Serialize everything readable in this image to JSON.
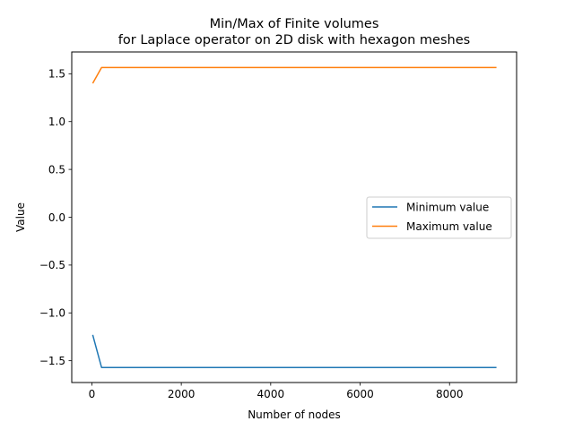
{
  "chart_data": {
    "type": "line",
    "title": "Min/Max of Finite volumes\nfor Laplace operator on 2D disk with hexagon meshes",
    "xlabel": "Number of nodes",
    "ylabel": "Value",
    "xlim": [
      -450,
      9500
    ],
    "ylim": [
      -1.728,
      1.728
    ],
    "xticks": [
      0,
      2000,
      4000,
      6000,
      8000
    ],
    "xtick_labels": [
      "0",
      "2000",
      "4000",
      "6000",
      "8000"
    ],
    "yticks": [
      -1.5,
      -1.0,
      -0.5,
      0.0,
      0.5,
      1.0,
      1.5
    ],
    "ytick_labels": [
      "−1.5",
      "−1.0",
      "−0.5",
      "0.0",
      "0.5",
      "1.0",
      "1.5"
    ],
    "grid": false,
    "legend": "center-right",
    "series": [
      {
        "name": "Minimum value",
        "color": "#1f77b4",
        "x": [
          19,
          217,
          9050
        ],
        "y": [
          -1.23,
          -1.571,
          -1.571
        ]
      },
      {
        "name": "Maximum value",
        "color": "#ff7f0e",
        "x": [
          19,
          217,
          9050
        ],
        "y": [
          1.4,
          1.565,
          1.565
        ]
      }
    ]
  }
}
